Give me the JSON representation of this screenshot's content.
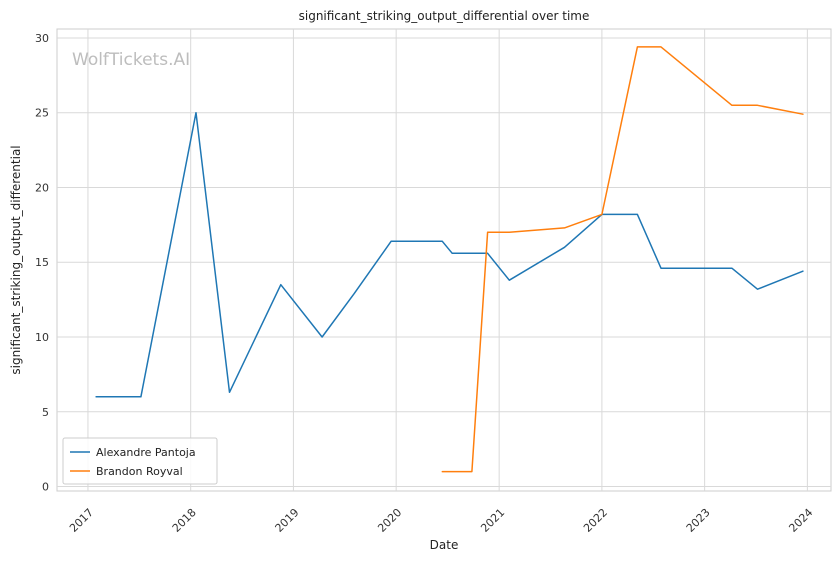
{
  "chart_data": {
    "type": "line",
    "title": "significant_striking_output_differential over time",
    "xlabel": "Date",
    "ylabel": "significant_striking_output_differential",
    "x_ticks": [
      "2017",
      "2018",
      "2019",
      "2020",
      "2021",
      "2022",
      "2023",
      "2024"
    ],
    "y_ticks": [
      "0",
      "5",
      "10",
      "15",
      "20",
      "25",
      "30"
    ],
    "xlim": [
      "2016-09-13",
      "2024-03-25"
    ],
    "ylim": [
      -0.3,
      30.6
    ],
    "grid": true,
    "legend_position": "bottom-left",
    "watermark": "WolfTickets.AI",
    "series": [
      {
        "name": "Alexandre Pantoja",
        "color": "#1f77b4",
        "points": [
          [
            "2017-01-30",
            6.0
          ],
          [
            "2017-07-08",
            6.0
          ],
          [
            "2018-01-20",
            25.0
          ],
          [
            "2018-05-19",
            6.3
          ],
          [
            "2018-11-17",
            13.5
          ],
          [
            "2019-04-13",
            10.0
          ],
          [
            "2019-08-05",
            12.9
          ],
          [
            "2019-12-14",
            16.4
          ],
          [
            "2020-06-13",
            16.4
          ],
          [
            "2020-07-18",
            15.6
          ],
          [
            "2020-11-21",
            15.6
          ],
          [
            "2021-02-06",
            13.8
          ],
          [
            "2021-08-21",
            16.0
          ],
          [
            "2022-01-01",
            18.2
          ],
          [
            "2022-05-07",
            18.2
          ],
          [
            "2022-07-30",
            14.6
          ],
          [
            "2023-04-08",
            14.6
          ],
          [
            "2023-07-08",
            13.2
          ],
          [
            "2023-12-16",
            14.4
          ]
        ]
      },
      {
        "name": "Brandon Royval",
        "color": "#ff7f0e",
        "points": [
          [
            "2020-06-13",
            1.0
          ],
          [
            "2020-09-26",
            1.0
          ],
          [
            "2020-11-21",
            17.0
          ],
          [
            "2021-02-06",
            17.0
          ],
          [
            "2021-08-21",
            17.3
          ],
          [
            "2022-01-01",
            18.2
          ],
          [
            "2022-05-07",
            29.4
          ],
          [
            "2022-07-30",
            29.4
          ],
          [
            "2023-04-08",
            25.5
          ],
          [
            "2023-07-08",
            25.5
          ],
          [
            "2023-12-16",
            24.9
          ]
        ]
      }
    ]
  }
}
